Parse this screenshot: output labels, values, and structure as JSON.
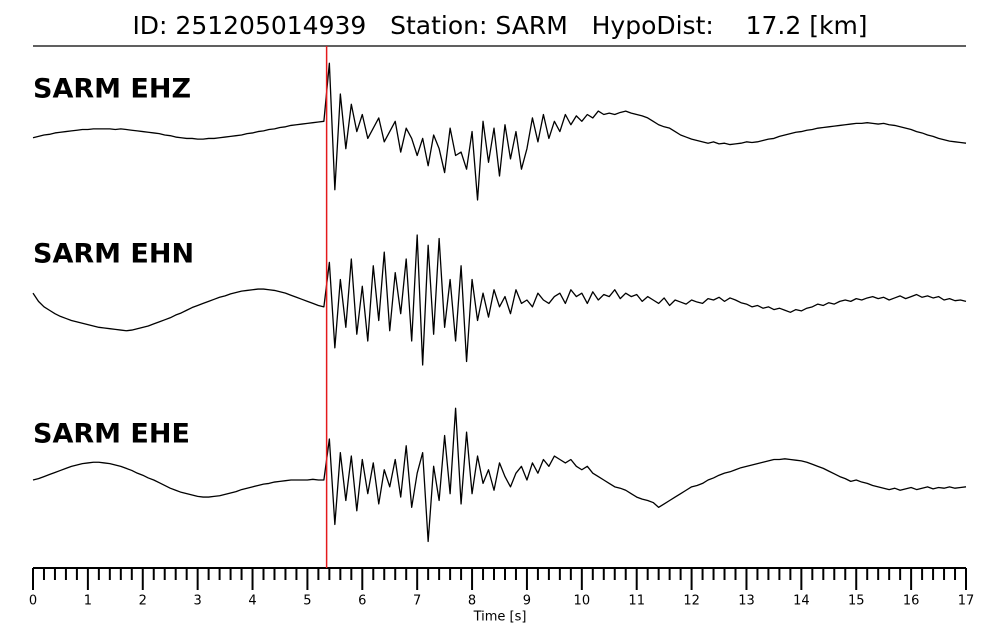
{
  "chart_data": {
    "type": "line",
    "title": "ID: 251205014939   Station: SARM   HypoDist:    17.2 [km]",
    "xlabel": "Time [s]",
    "xlim": [
      0,
      17
    ],
    "xticks": [
      0,
      1,
      2,
      3,
      4,
      5,
      6,
      7,
      8,
      9,
      10,
      11,
      12,
      13,
      14,
      15,
      16,
      17
    ],
    "xminorticks": [
      0.2,
      0.4,
      0.6,
      0.8,
      1.2,
      1.4,
      1.6,
      1.8,
      2.2,
      2.4,
      2.6,
      2.8,
      3.2,
      3.4,
      3.6,
      3.8,
      4.2,
      4.4,
      4.6,
      4.8,
      5.2,
      5.4,
      5.6,
      5.8,
      6.2,
      6.4,
      6.6,
      6.8,
      7.2,
      7.4,
      7.6,
      7.8,
      8.2,
      8.4,
      8.6,
      8.8,
      9.2,
      9.4,
      9.6,
      9.8,
      10.2,
      10.4,
      10.6,
      10.8,
      11.2,
      11.4,
      11.6,
      11.8,
      12.2,
      12.4,
      12.6,
      12.8,
      13.2,
      13.4,
      13.6,
      13.8,
      14.2,
      14.4,
      14.6,
      14.8,
      15.2,
      15.4,
      15.6,
      15.8,
      16.2,
      16.4,
      16.6,
      16.8
    ],
    "ylim": [
      -1.2,
      1.2
    ],
    "label_color": "#4c9a00",
    "marker": {
      "x": 5.35,
      "color": "#e41a1c"
    },
    "x": [
      0,
      0.1,
      0.2,
      0.3,
      0.4,
      0.5,
      0.6,
      0.7,
      0.8,
      0.9,
      1,
      1.1,
      1.2,
      1.3,
      1.4,
      1.5,
      1.6,
      1.7,
      1.8,
      1.9,
      2,
      2.1,
      2.2,
      2.3,
      2.4,
      2.5,
      2.6,
      2.7,
      2.8,
      2.9,
      3,
      3.1,
      3.2,
      3.3,
      3.4,
      3.5,
      3.6,
      3.7,
      3.8,
      3.9,
      4,
      4.1,
      4.2,
      4.3,
      4.4,
      4.5,
      4.6,
      4.7,
      4.8,
      4.9,
      5,
      5.1,
      5.2,
      5.3,
      5.4,
      5.5,
      5.6,
      5.7,
      5.8,
      5.9,
      6,
      6.1,
      6.2,
      6.3,
      6.4,
      6.5,
      6.6,
      6.7,
      6.8,
      6.9,
      7,
      7.1,
      7.2,
      7.3,
      7.4,
      7.5,
      7.6,
      7.7,
      7.8,
      7.9,
      8,
      8.1,
      8.2,
      8.3,
      8.4,
      8.5,
      8.6,
      8.7,
      8.8,
      8.9,
      9,
      9.1,
      9.2,
      9.3,
      9.4,
      9.5,
      9.6,
      9.7,
      9.8,
      9.9,
      10,
      10.1,
      10.2,
      10.3,
      10.4,
      10.5,
      10.6,
      10.7,
      10.8,
      10.9,
      11,
      11.1,
      11.2,
      11.3,
      11.4,
      11.5,
      11.6,
      11.7,
      11.8,
      11.9,
      12,
      12.1,
      12.2,
      12.3,
      12.4,
      12.5,
      12.6,
      12.7,
      12.8,
      12.9,
      13,
      13.1,
      13.2,
      13.3,
      13.4,
      13.5,
      13.6,
      13.7,
      13.8,
      13.9,
      14,
      14.1,
      14.2,
      14.3,
      14.4,
      14.5,
      14.6,
      14.7,
      14.8,
      14.9,
      15,
      15.1,
      15.2,
      15.3,
      15.4,
      15.5,
      15.6,
      15.7,
      15.8,
      15.9,
      16,
      16.1,
      16.2,
      16.3,
      16.4,
      16.5,
      16.6,
      16.7,
      16.8,
      16.9,
      17
    ],
    "series": [
      {
        "name": "SARM EHZ",
        "color": "#000000",
        "values": [
          -0.04,
          -0.02,
          0.0,
          0.01,
          0.03,
          0.04,
          0.05,
          0.06,
          0.07,
          0.08,
          0.08,
          0.09,
          0.09,
          0.09,
          0.09,
          0.08,
          0.09,
          0.08,
          0.07,
          0.06,
          0.05,
          0.04,
          0.03,
          0.02,
          0.0,
          -0.01,
          -0.03,
          -0.04,
          -0.05,
          -0.05,
          -0.06,
          -0.06,
          -0.05,
          -0.05,
          -0.04,
          -0.03,
          -0.02,
          -0.01,
          0.0,
          0.02,
          0.03,
          0.05,
          0.06,
          0.08,
          0.09,
          0.11,
          0.12,
          0.14,
          0.15,
          0.16,
          0.17,
          0.18,
          0.19,
          0.2,
          1.05,
          -0.8,
          0.6,
          -0.2,
          0.45,
          0.05,
          0.3,
          -0.05,
          0.1,
          0.25,
          -0.1,
          0.05,
          0.2,
          -0.25,
          0.1,
          -0.05,
          -0.3,
          -0.05,
          -0.45,
          0.0,
          -0.2,
          -0.55,
          0.1,
          -0.3,
          -0.25,
          -0.5,
          0.05,
          -0.95,
          0.2,
          -0.4,
          0.1,
          -0.6,
          0.15,
          -0.35,
          0.05,
          -0.5,
          -0.2,
          0.25,
          -0.1,
          0.3,
          -0.05,
          0.2,
          0.05,
          0.3,
          0.15,
          0.28,
          0.2,
          0.3,
          0.25,
          0.35,
          0.3,
          0.32,
          0.3,
          0.33,
          0.35,
          0.32,
          0.3,
          0.28,
          0.25,
          0.2,
          0.15,
          0.12,
          0.1,
          0.05,
          0.0,
          -0.03,
          -0.06,
          -0.08,
          -0.1,
          -0.12,
          -0.1,
          -0.13,
          -0.12,
          -0.14,
          -0.13,
          -0.12,
          -0.1,
          -0.11,
          -0.1,
          -0.08,
          -0.06,
          -0.05,
          -0.02,
          0.0,
          0.02,
          0.04,
          0.05,
          0.07,
          0.08,
          0.1,
          0.11,
          0.12,
          0.13,
          0.14,
          0.15,
          0.16,
          0.17,
          0.17,
          0.18,
          0.17,
          0.16,
          0.17,
          0.15,
          0.14,
          0.12,
          0.1,
          0.08,
          0.05,
          0.03,
          0.0,
          -0.02,
          -0.05,
          -0.07,
          -0.09,
          -0.1,
          -0.11,
          -0.12
        ]
      },
      {
        "name": "SARM EHN",
        "color": "#000000",
        "values": [
          0.1,
          -0.02,
          -0.1,
          -0.15,
          -0.2,
          -0.24,
          -0.27,
          -0.3,
          -0.32,
          -0.34,
          -0.36,
          -0.38,
          -0.4,
          -0.41,
          -0.42,
          -0.43,
          -0.44,
          -0.45,
          -0.44,
          -0.42,
          -0.4,
          -0.38,
          -0.35,
          -0.32,
          -0.29,
          -0.26,
          -0.22,
          -0.19,
          -0.15,
          -0.11,
          -0.08,
          -0.05,
          -0.02,
          0.01,
          0.04,
          0.06,
          0.09,
          0.11,
          0.13,
          0.14,
          0.15,
          0.16,
          0.16,
          0.15,
          0.14,
          0.12,
          0.1,
          0.07,
          0.04,
          0.01,
          -0.02,
          -0.05,
          -0.08,
          -0.1,
          0.55,
          -0.7,
          0.3,
          -0.4,
          0.6,
          -0.5,
          0.2,
          -0.6,
          0.5,
          -0.3,
          0.7,
          -0.45,
          0.4,
          -0.2,
          0.6,
          -0.6,
          0.95,
          -0.95,
          0.8,
          -0.5,
          0.9,
          -0.4,
          0.3,
          -0.6,
          0.5,
          -0.9,
          0.3,
          -0.3,
          0.1,
          -0.25,
          0.15,
          -0.1,
          0.05,
          -0.2,
          0.15,
          -0.05,
          0.0,
          -0.1,
          0.1,
          0.0,
          -0.05,
          0.05,
          0.1,
          -0.05,
          0.15,
          0.05,
          0.1,
          -0.05,
          0.12,
          0.0,
          0.08,
          0.05,
          0.15,
          0.02,
          0.1,
          0.05,
          0.08,
          -0.02,
          0.05,
          0.0,
          -0.05,
          0.03,
          -0.08,
          0.0,
          -0.03,
          -0.06,
          0.0,
          -0.03,
          -0.05,
          0.02,
          0.0,
          0.04,
          -0.02,
          0.03,
          0.0,
          -0.04,
          -0.06,
          -0.1,
          -0.08,
          -0.12,
          -0.1,
          -0.14,
          -0.12,
          -0.15,
          -0.18,
          -0.14,
          -0.16,
          -0.12,
          -0.1,
          -0.06,
          -0.08,
          -0.04,
          -0.06,
          -0.02,
          0.0,
          -0.02,
          0.02,
          0.0,
          0.03,
          0.05,
          0.02,
          0.04,
          0.0,
          0.03,
          0.06,
          0.02,
          0.05,
          0.08,
          0.04,
          0.06,
          0.03,
          0.05,
          0.0,
          0.02,
          -0.01,
          0.0,
          -0.02
        ]
      },
      {
        "name": "SARM EHE",
        "color": "#000000",
        "values": [
          0.0,
          0.02,
          0.05,
          0.08,
          0.11,
          0.14,
          0.17,
          0.2,
          0.22,
          0.24,
          0.25,
          0.26,
          0.26,
          0.25,
          0.24,
          0.22,
          0.2,
          0.17,
          0.14,
          0.1,
          0.07,
          0.03,
          0.0,
          -0.04,
          -0.08,
          -0.12,
          -0.15,
          -0.18,
          -0.2,
          -0.22,
          -0.24,
          -0.25,
          -0.25,
          -0.24,
          -0.23,
          -0.21,
          -0.19,
          -0.17,
          -0.14,
          -0.12,
          -0.1,
          -0.08,
          -0.06,
          -0.05,
          -0.03,
          -0.02,
          -0.01,
          0.0,
          0.0,
          0.0,
          0.0,
          0.01,
          0.0,
          0.0,
          0.6,
          -0.65,
          0.4,
          -0.3,
          0.35,
          -0.45,
          0.3,
          -0.2,
          0.25,
          -0.35,
          0.15,
          -0.1,
          0.3,
          -0.25,
          0.5,
          -0.4,
          0.1,
          0.4,
          -0.9,
          0.2,
          -0.3,
          0.65,
          -0.2,
          1.05,
          -0.35,
          0.7,
          -0.2,
          0.35,
          -0.05,
          0.15,
          -0.15,
          0.25,
          0.05,
          -0.1,
          0.1,
          0.2,
          0.0,
          0.25,
          0.1,
          0.3,
          0.2,
          0.35,
          0.3,
          0.25,
          0.3,
          0.2,
          0.15,
          0.2,
          0.1,
          0.05,
          0.0,
          -0.05,
          -0.1,
          -0.12,
          -0.15,
          -0.2,
          -0.25,
          -0.28,
          -0.3,
          -0.33,
          -0.4,
          -0.35,
          -0.3,
          -0.25,
          -0.2,
          -0.15,
          -0.1,
          -0.08,
          -0.05,
          0.0,
          0.03,
          0.07,
          0.1,
          0.12,
          0.15,
          0.18,
          0.2,
          0.22,
          0.24,
          0.26,
          0.28,
          0.3,
          0.3,
          0.31,
          0.3,
          0.29,
          0.28,
          0.26,
          0.23,
          0.2,
          0.17,
          0.13,
          0.09,
          0.05,
          0.02,
          -0.02,
          0.0,
          -0.03,
          -0.05,
          -0.08,
          -0.1,
          -0.12,
          -0.14,
          -0.12,
          -0.15,
          -0.13,
          -0.11,
          -0.14,
          -0.12,
          -0.1,
          -0.13,
          -0.11,
          -0.12,
          -0.1,
          -0.12,
          -0.11,
          -0.1
        ]
      }
    ]
  }
}
